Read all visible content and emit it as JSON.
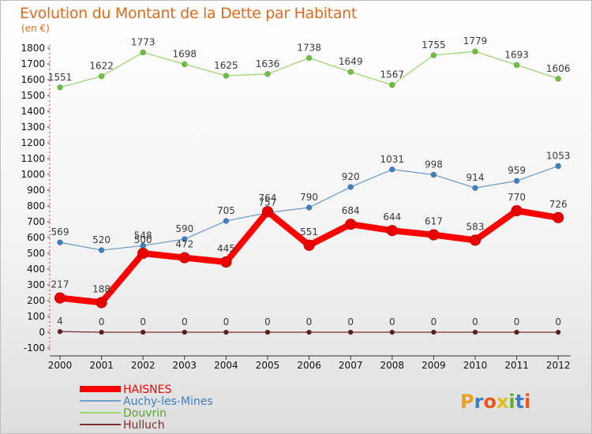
{
  "header": {
    "title": "Evolution du Montant de la Dette par Habitant",
    "unit": "(en €)"
  },
  "brand": {
    "name": "Proxiti",
    "letters": [
      "P",
      "r",
      "o",
      "x",
      "i",
      "t",
      "i"
    ],
    "colors": [
      "#e8a21c",
      "#3b7fc4",
      "#e8571c",
      "#d8c11c",
      "#5fae2e",
      "#3b7fc4",
      "#e8571c"
    ]
  },
  "chart_data": {
    "type": "line",
    "title": "Evolution du Montant de la Dette par Habitant",
    "subtitle": "(en €)",
    "xlabel": "",
    "ylabel": "",
    "x": [
      "2000",
      "2001",
      "2002",
      "2003",
      "2004",
      "2005",
      "2006",
      "2007",
      "2008",
      "2009",
      "2010",
      "2011",
      "2012"
    ],
    "ylim": [
      -100,
      1800
    ],
    "yticks": [
      -100,
      0,
      100,
      200,
      300,
      400,
      500,
      600,
      700,
      800,
      900,
      1000,
      1100,
      1200,
      1300,
      1400,
      1500,
      1600,
      1700,
      1800
    ],
    "grid": false,
    "legend_position": "bottom-left",
    "series": [
      {
        "name": "HAISNES",
        "color": "#ff0000",
        "marker": "#e60000",
        "values": [
          217,
          188,
          500,
          472,
          445,
          764,
          551,
          684,
          644,
          617,
          583,
          770,
          726
        ]
      },
      {
        "name": "Auchy-les-Mines",
        "color": "#6fa0cc",
        "marker": "#3f7fbf",
        "values": [
          569,
          520,
          548,
          590,
          705,
          757,
          790,
          920,
          1031,
          998,
          914,
          959,
          1053
        ]
      },
      {
        "name": "Douvrin",
        "color": "#9fd66f",
        "marker": "#6fbf3f",
        "values": [
          1551,
          1622,
          1773,
          1698,
          1625,
          1636,
          1738,
          1649,
          1567,
          1755,
          1779,
          1693,
          1606
        ]
      },
      {
        "name": "Hulluch",
        "color": "#7a2f2f",
        "marker": "#5a1f1f",
        "values": [
          4,
          0,
          0,
          0,
          0,
          0,
          0,
          0,
          0,
          0,
          0,
          0,
          0
        ]
      }
    ]
  }
}
